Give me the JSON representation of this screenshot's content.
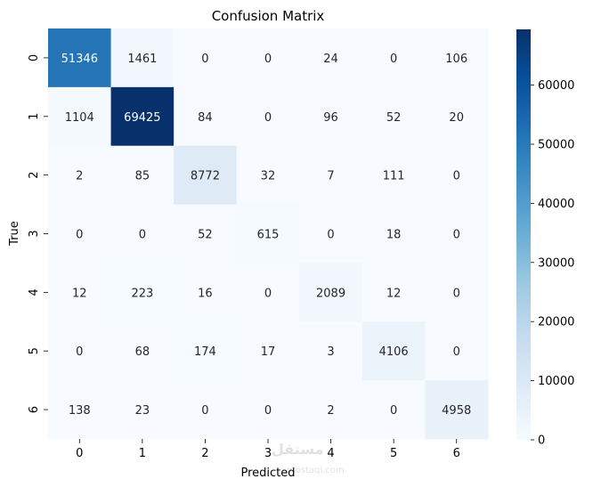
{
  "chart_data": {
    "type": "heatmap",
    "title": "Confusion Matrix",
    "xlabel": "Predicted",
    "ylabel": "True",
    "x_categories": [
      "0",
      "1",
      "2",
      "3",
      "4",
      "5",
      "6"
    ],
    "y_categories": [
      "0",
      "1",
      "2",
      "3",
      "4",
      "5",
      "6"
    ],
    "values": [
      [
        51346,
        1461,
        0,
        0,
        24,
        0,
        106
      ],
      [
        1104,
        69425,
        84,
        0,
        96,
        52,
        20
      ],
      [
        2,
        85,
        8772,
        32,
        7,
        111,
        0
      ],
      [
        0,
        0,
        52,
        615,
        0,
        18,
        0
      ],
      [
        12,
        223,
        16,
        0,
        2089,
        12,
        0
      ],
      [
        0,
        68,
        174,
        17,
        3,
        4106,
        0
      ],
      [
        138,
        23,
        0,
        0,
        2,
        0,
        4958
      ]
    ],
    "colorbar": {
      "colormap": "Blues",
      "vmin": 0,
      "vmax": 69425,
      "ticks": [
        0,
        10000,
        20000,
        30000,
        40000,
        50000,
        60000
      ],
      "tick_labels": [
        "0",
        "10000",
        "20000",
        "30000",
        "40000",
        "50000",
        "60000"
      ]
    },
    "grid": false
  },
  "watermark": {
    "text": "مستقل",
    "subtext": "mostaql.com"
  }
}
